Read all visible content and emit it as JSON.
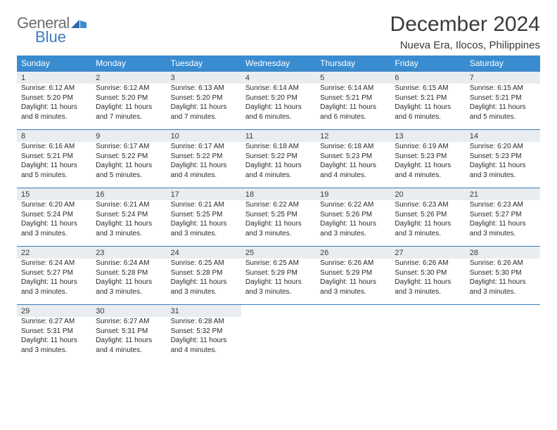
{
  "logo": {
    "textTop": "General",
    "textBottom": "Blue"
  },
  "title": "December 2024",
  "location": "Nueva Era, Ilocos, Philippines",
  "colors": {
    "headerBg": "#3a8cd0",
    "headerText": "#ffffff",
    "dayNumBg": "#e9edf0",
    "border": "#3a7cc0",
    "text": "#2a2a2a"
  },
  "weekdays": [
    "Sunday",
    "Monday",
    "Tuesday",
    "Wednesday",
    "Thursday",
    "Friday",
    "Saturday"
  ],
  "weeks": [
    [
      {
        "n": "1",
        "sr": "6:12 AM",
        "ss": "5:20 PM",
        "dl": "11 hours and 8 minutes."
      },
      {
        "n": "2",
        "sr": "6:12 AM",
        "ss": "5:20 PM",
        "dl": "11 hours and 7 minutes."
      },
      {
        "n": "3",
        "sr": "6:13 AM",
        "ss": "5:20 PM",
        "dl": "11 hours and 7 minutes."
      },
      {
        "n": "4",
        "sr": "6:14 AM",
        "ss": "5:20 PM",
        "dl": "11 hours and 6 minutes."
      },
      {
        "n": "5",
        "sr": "6:14 AM",
        "ss": "5:21 PM",
        "dl": "11 hours and 6 minutes."
      },
      {
        "n": "6",
        "sr": "6:15 AM",
        "ss": "5:21 PM",
        "dl": "11 hours and 6 minutes."
      },
      {
        "n": "7",
        "sr": "6:15 AM",
        "ss": "5:21 PM",
        "dl": "11 hours and 5 minutes."
      }
    ],
    [
      {
        "n": "8",
        "sr": "6:16 AM",
        "ss": "5:21 PM",
        "dl": "11 hours and 5 minutes."
      },
      {
        "n": "9",
        "sr": "6:17 AM",
        "ss": "5:22 PM",
        "dl": "11 hours and 5 minutes."
      },
      {
        "n": "10",
        "sr": "6:17 AM",
        "ss": "5:22 PM",
        "dl": "11 hours and 4 minutes."
      },
      {
        "n": "11",
        "sr": "6:18 AM",
        "ss": "5:22 PM",
        "dl": "11 hours and 4 minutes."
      },
      {
        "n": "12",
        "sr": "6:18 AM",
        "ss": "5:23 PM",
        "dl": "11 hours and 4 minutes."
      },
      {
        "n": "13",
        "sr": "6:19 AM",
        "ss": "5:23 PM",
        "dl": "11 hours and 4 minutes."
      },
      {
        "n": "14",
        "sr": "6:20 AM",
        "ss": "5:23 PM",
        "dl": "11 hours and 3 minutes."
      }
    ],
    [
      {
        "n": "15",
        "sr": "6:20 AM",
        "ss": "5:24 PM",
        "dl": "11 hours and 3 minutes."
      },
      {
        "n": "16",
        "sr": "6:21 AM",
        "ss": "5:24 PM",
        "dl": "11 hours and 3 minutes."
      },
      {
        "n": "17",
        "sr": "6:21 AM",
        "ss": "5:25 PM",
        "dl": "11 hours and 3 minutes."
      },
      {
        "n": "18",
        "sr": "6:22 AM",
        "ss": "5:25 PM",
        "dl": "11 hours and 3 minutes."
      },
      {
        "n": "19",
        "sr": "6:22 AM",
        "ss": "5:26 PM",
        "dl": "11 hours and 3 minutes."
      },
      {
        "n": "20",
        "sr": "6:23 AM",
        "ss": "5:26 PM",
        "dl": "11 hours and 3 minutes."
      },
      {
        "n": "21",
        "sr": "6:23 AM",
        "ss": "5:27 PM",
        "dl": "11 hours and 3 minutes."
      }
    ],
    [
      {
        "n": "22",
        "sr": "6:24 AM",
        "ss": "5:27 PM",
        "dl": "11 hours and 3 minutes."
      },
      {
        "n": "23",
        "sr": "6:24 AM",
        "ss": "5:28 PM",
        "dl": "11 hours and 3 minutes."
      },
      {
        "n": "24",
        "sr": "6:25 AM",
        "ss": "5:28 PM",
        "dl": "11 hours and 3 minutes."
      },
      {
        "n": "25",
        "sr": "6:25 AM",
        "ss": "5:29 PM",
        "dl": "11 hours and 3 minutes."
      },
      {
        "n": "26",
        "sr": "6:26 AM",
        "ss": "5:29 PM",
        "dl": "11 hours and 3 minutes."
      },
      {
        "n": "27",
        "sr": "6:26 AM",
        "ss": "5:30 PM",
        "dl": "11 hours and 3 minutes."
      },
      {
        "n": "28",
        "sr": "6:26 AM",
        "ss": "5:30 PM",
        "dl": "11 hours and 3 minutes."
      }
    ],
    [
      {
        "n": "29",
        "sr": "6:27 AM",
        "ss": "5:31 PM",
        "dl": "11 hours and 3 minutes."
      },
      {
        "n": "30",
        "sr": "6:27 AM",
        "ss": "5:31 PM",
        "dl": "11 hours and 4 minutes."
      },
      {
        "n": "31",
        "sr": "6:28 AM",
        "ss": "5:32 PM",
        "dl": "11 hours and 4 minutes."
      },
      null,
      null,
      null,
      null
    ]
  ],
  "labels": {
    "sunrise": "Sunrise:",
    "sunset": "Sunset:",
    "daylight": "Daylight:"
  }
}
